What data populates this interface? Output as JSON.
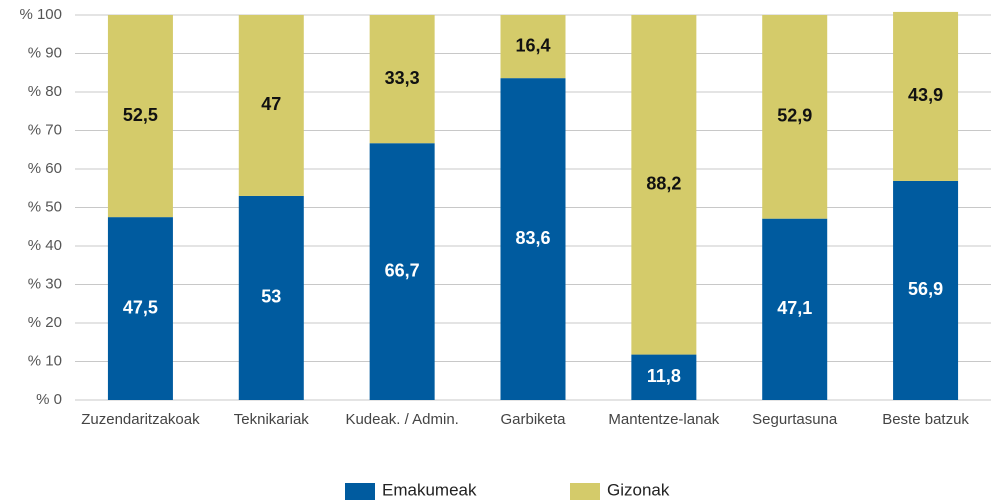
{
  "chart_data": {
    "type": "stacked_bar",
    "categories": [
      "Zuzendaritzakoak",
      "Teknikariak",
      "Kudeak. / Admin.",
      "Garbiketa",
      "Mantentze-lanak",
      "Segurtasuna",
      "Beste batzuk"
    ],
    "series": [
      {
        "name": "Emakumeak",
        "color": "#005b9f",
        "values": [
          47.5,
          53,
          66.7,
          83.6,
          11.8,
          47.1,
          56.9
        ],
        "value_labels": [
          "47,5",
          "53",
          "66,7",
          "83,6",
          "11,8",
          "47,1",
          "56,9"
        ]
      },
      {
        "name": "Gizonak",
        "color": "#d4cb6a",
        "values": [
          52.5,
          47,
          33.3,
          16.4,
          88.2,
          52.9,
          43.9
        ],
        "value_labels": [
          "52,5",
          "47",
          "33,3",
          "16,4",
          "88,2",
          "52,9",
          "43,9"
        ]
      }
    ],
    "ylim": [
      0,
      100
    ],
    "yticks": [
      {
        "value": 0,
        "label": "% 0"
      },
      {
        "value": 10,
        "label": "% 10"
      },
      {
        "value": 20,
        "label": "% 20"
      },
      {
        "value": 30,
        "label": "% 30"
      },
      {
        "value": 40,
        "label": "% 40"
      },
      {
        "value": 50,
        "label": "% 50"
      },
      {
        "value": 60,
        "label": "% 60"
      },
      {
        "value": 70,
        "label": "% 70"
      },
      {
        "value": 80,
        "label": "% 80"
      },
      {
        "value": 90,
        "label": "% 90"
      },
      {
        "value": 100,
        "label": "% 100"
      }
    ],
    "grid": true,
    "legend": "bottom"
  }
}
